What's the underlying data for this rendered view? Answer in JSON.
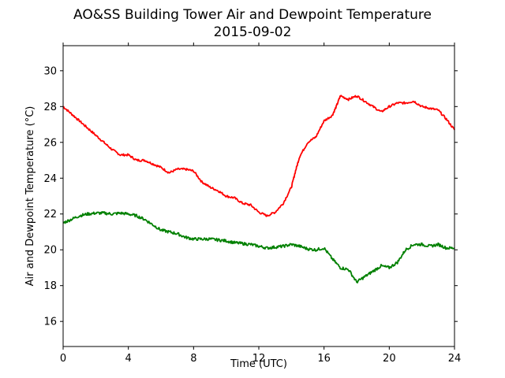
{
  "chart_data": {
    "type": "line",
    "title": "AO&SS Building Tower Air and Dewpoint Temperature",
    "subtitle": "2015-09-02",
    "xlabel": "Time (UTC)",
    "ylabel": "Air and Dewpoint Temperature (°C)",
    "xlim": [
      0,
      24
    ],
    "ylim": [
      14.6,
      31.4
    ],
    "xticks": [
      "0",
      "4",
      "8",
      "12",
      "16",
      "20",
      "24"
    ],
    "yticks": [
      "16",
      "18",
      "20",
      "22",
      "24",
      "26",
      "28",
      "30"
    ],
    "grid": false,
    "series": [
      {
        "color": "#ff0000",
        "x": [
          0,
          0.5,
          1,
          1.5,
          2,
          2.5,
          3,
          3.5,
          4,
          4.5,
          5,
          5.5,
          6,
          6.5,
          7,
          7.5,
          8,
          8.5,
          9,
          9.5,
          10,
          10.5,
          11,
          11.5,
          12,
          12.5,
          13,
          13.5,
          14,
          14.25,
          14.5,
          15,
          15.5,
          16,
          16.5,
          16.75,
          17,
          17.5,
          18,
          18.5,
          19,
          19.5,
          20,
          20.5,
          21,
          21.5,
          22,
          22.5,
          23,
          23.5,
          24
        ],
        "y": [
          28.0,
          27.6,
          27.2,
          26.8,
          26.4,
          26.0,
          25.6,
          25.3,
          25.3,
          25.0,
          25.0,
          24.8,
          24.6,
          24.3,
          24.5,
          24.5,
          24.4,
          23.8,
          23.5,
          23.3,
          23.0,
          22.9,
          22.6,
          22.5,
          22.1,
          21.9,
          22.1,
          22.6,
          23.5,
          24.4,
          25.2,
          26.0,
          26.3,
          27.2,
          27.5,
          28.0,
          28.6,
          28.4,
          28.6,
          28.3,
          28.0,
          27.7,
          28.0,
          28.2,
          28.2,
          28.3,
          28.0,
          27.9,
          27.8,
          27.3,
          26.7
        ]
      },
      {
        "color": "#008000",
        "x": [
          0,
          0.5,
          1,
          1.5,
          2,
          2.5,
          3,
          3.5,
          4,
          4.5,
          5,
          5.5,
          6,
          6.5,
          7,
          7.5,
          8,
          8.5,
          9,
          9.5,
          10,
          10.5,
          11,
          11.5,
          12,
          12.5,
          13,
          13.5,
          14,
          14.5,
          15,
          15.5,
          16,
          16.5,
          17,
          17.5,
          18,
          18.5,
          19,
          19.5,
          20,
          20.5,
          21,
          21.5,
          22,
          22.5,
          23,
          23.5,
          24
        ],
        "y": [
          21.5,
          21.7,
          21.9,
          22.0,
          22.05,
          22.05,
          22.0,
          22.05,
          22.0,
          21.9,
          21.7,
          21.4,
          21.1,
          21.0,
          20.9,
          20.7,
          20.6,
          20.6,
          20.6,
          20.55,
          20.5,
          20.4,
          20.35,
          20.3,
          20.2,
          20.1,
          20.15,
          20.2,
          20.3,
          20.2,
          20.05,
          20.0,
          20.1,
          19.5,
          19.0,
          18.9,
          18.2,
          18.5,
          18.8,
          19.1,
          19.0,
          19.3,
          20.0,
          20.3,
          20.3,
          20.2,
          20.3,
          20.1,
          20.1
        ]
      }
    ]
  }
}
